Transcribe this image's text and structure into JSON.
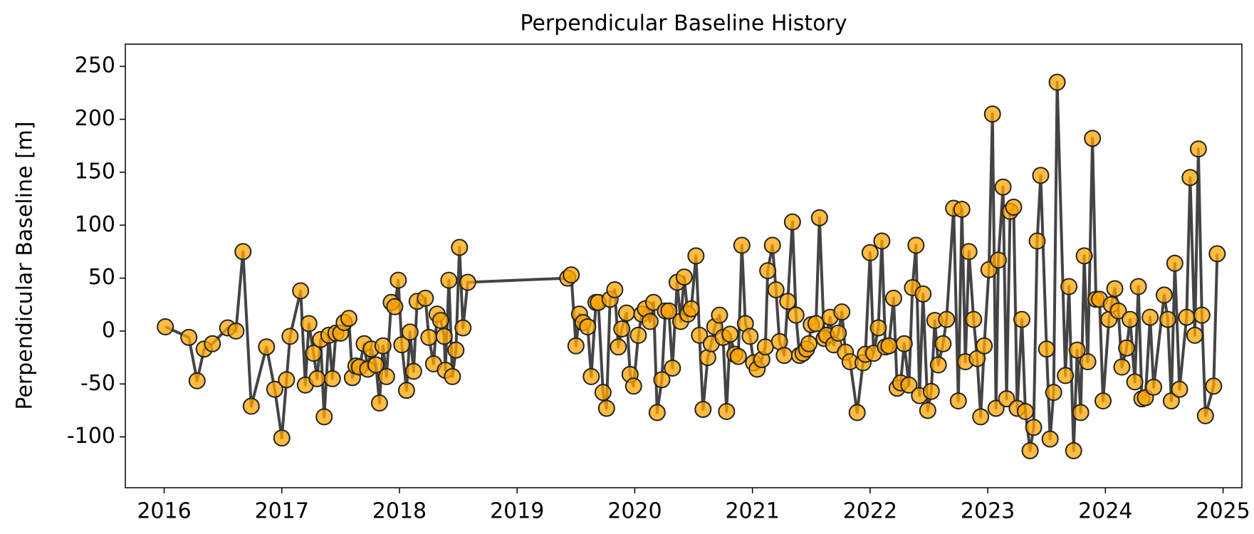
{
  "chart_data": {
    "type": "line",
    "title": "Perpendicular Baseline History",
    "ylabel": "Perpendicular Baseline [m]",
    "x": [
      2016.01,
      2016.21,
      2016.28,
      2016.34,
      2016.41,
      2016.54,
      2016.61,
      2016.67,
      2016.74,
      2016.87,
      2016.94,
      2017.0,
      2017.04,
      2017.07,
      2017.16,
      2017.2,
      2017.23,
      2017.27,
      2017.3,
      2017.33,
      2017.36,
      2017.4,
      2017.43,
      2017.46,
      2017.5,
      2017.53,
      2017.57,
      2017.6,
      2017.63,
      2017.66,
      2017.7,
      2017.73,
      2017.76,
      2017.8,
      2017.83,
      2017.86,
      2017.89,
      2017.93,
      2017.96,
      2017.99,
      2018.02,
      2018.06,
      2018.09,
      2018.12,
      2018.15,
      2018.22,
      2018.25,
      2018.29,
      2018.32,
      2018.35,
      2018.38,
      2018.39,
      2018.42,
      2018.45,
      2018.48,
      2018.51,
      2018.54,
      2018.58,
      2019.43,
      2019.46,
      2019.5,
      2019.53,
      2019.56,
      2019.6,
      2019.63,
      2019.67,
      2019.69,
      2019.73,
      2019.76,
      2019.79,
      2019.83,
      2019.86,
      2019.89,
      2019.93,
      2019.96,
      2019.99,
      2020.03,
      2020.06,
      2020.09,
      2020.13,
      2020.16,
      2020.19,
      2020.23,
      2020.26,
      2020.29,
      2020.32,
      2020.36,
      2020.39,
      2020.42,
      2020.45,
      2020.48,
      2020.52,
      2020.55,
      2020.58,
      2020.62,
      2020.65,
      2020.68,
      2020.72,
      2020.75,
      2020.78,
      2020.81,
      2020.85,
      2020.88,
      2020.91,
      2020.94,
      2020.98,
      2021.01,
      2021.04,
      2021.08,
      2021.11,
      2021.13,
      2021.17,
      2021.2,
      2021.23,
      2021.27,
      2021.3,
      2021.34,
      2021.37,
      2021.4,
      2021.43,
      2021.46,
      2021.48,
      2021.5,
      2021.54,
      2021.57,
      2021.61,
      2021.63,
      2021.66,
      2021.69,
      2021.73,
      2021.76,
      2021.79,
      2021.83,
      2021.89,
      2021.94,
      2021.96,
      2022.0,
      2022.03,
      2022.07,
      2022.1,
      2022.13,
      2022.16,
      2022.2,
      2022.23,
      2022.26,
      2022.29,
      2022.33,
      2022.36,
      2022.39,
      2022.42,
      2022.45,
      2022.49,
      2022.52,
      2022.55,
      2022.58,
      2022.62,
      2022.65,
      2022.71,
      2022.75,
      2022.78,
      2022.81,
      2022.84,
      2022.88,
      2022.91,
      2022.94,
      2022.97,
      2023.01,
      2023.04,
      2023.07,
      2023.09,
      2023.13,
      2023.16,
      2023.19,
      2023.22,
      2023.25,
      2023.29,
      2023.32,
      2023.36,
      2023.39,
      2023.42,
      2023.45,
      2023.5,
      2023.53,
      2023.56,
      2023.59,
      2023.66,
      2023.69,
      2023.73,
      2023.76,
      2023.79,
      2023.82,
      2023.85,
      2023.89,
      2023.92,
      2023.95,
      2023.98,
      2024.03,
      2024.05,
      2024.08,
      2024.11,
      2024.14,
      2024.18,
      2024.21,
      2024.25,
      2024.28,
      2024.31,
      2024.34,
      2024.38,
      2024.41,
      2024.5,
      2024.53,
      2024.56,
      2024.59,
      2024.63,
      2024.69,
      2024.72,
      2024.76,
      2024.79,
      2024.82,
      2024.85,
      2024.92,
      2024.95
    ],
    "series": [
      {
        "color": "#444444",
        "marker_color": "#ffa500",
        "values": [
          4,
          -6,
          -47,
          -17,
          -12,
          3,
          0,
          75,
          -71,
          -15,
          -55,
          -101,
          -46,
          -5,
          38,
          -51,
          7,
          -21,
          -45,
          -8,
          -81,
          -4,
          -45,
          -2,
          -2,
          8,
          12,
          -44,
          -33,
          -34,
          -12,
          -36,
          -17,
          -32,
          -68,
          -14,
          -43,
          27,
          23,
          48,
          -13,
          -56,
          -1,
          -38,
          28,
          31,
          -6,
          -31,
          16,
          10,
          -5,
          -37,
          48,
          -43,
          -18,
          79,
          3,
          46,
          50,
          53,
          -14,
          16,
          8,
          4,
          -43,
          27,
          27,
          -58,
          -73,
          30,
          39,
          -15,
          2,
          17,
          -41,
          -52,
          -4,
          16,
          21,
          9,
          27,
          -77,
          -46,
          19,
          19,
          -35,
          46,
          9,
          51,
          16,
          21,
          71,
          -4,
          -74,
          -25,
          -12,
          4,
          15,
          -6,
          -76,
          -3,
          -22,
          -24,
          81,
          7,
          -5,
          -30,
          -36,
          -27,
          -15,
          57,
          81,
          39,
          -10,
          -23,
          28,
          103,
          15,
          -23,
          -21,
          -17,
          -12,
          6,
          7,
          107,
          -7,
          -4,
          13,
          -13,
          -2,
          18,
          -20,
          -29,
          -77,
          -30,
          -22,
          74,
          -21,
          3,
          85,
          -15,
          -14,
          31,
          -54,
          -49,
          -12,
          -51,
          41,
          81,
          -61,
          35,
          -75,
          -57,
          10,
          -32,
          -12,
          11,
          116,
          -66,
          115,
          -29,
          75,
          11,
          -26,
          -81,
          -14,
          58,
          205,
          -73,
          67,
          136,
          -64,
          113,
          117,
          -73,
          11,
          -76,
          -113,
          -91,
          85,
          147,
          -17,
          -102,
          -58,
          235,
          -42,
          42,
          -113,
          -18,
          -77,
          71,
          -29,
          182,
          30,
          30,
          -66,
          11,
          25,
          40,
          19,
          -34,
          -16,
          11,
          -48,
          42,
          -64,
          -63,
          13,
          -53,
          34,
          11,
          -66,
          64,
          -55,
          13,
          145,
          -4,
          172,
          15,
          -80,
          -52,
          73
        ]
      }
    ],
    "xlim": [
      2015.67,
      2025.16
    ],
    "xticks": [
      2016,
      2017,
      2018,
      2019,
      2020,
      2021,
      2022,
      2023,
      2024,
      2025
    ],
    "ylim": [
      -148,
      271
    ],
    "yticks": [
      -100,
      -50,
      0,
      50,
      100,
      150,
      200,
      250
    ],
    "grid": false
  }
}
